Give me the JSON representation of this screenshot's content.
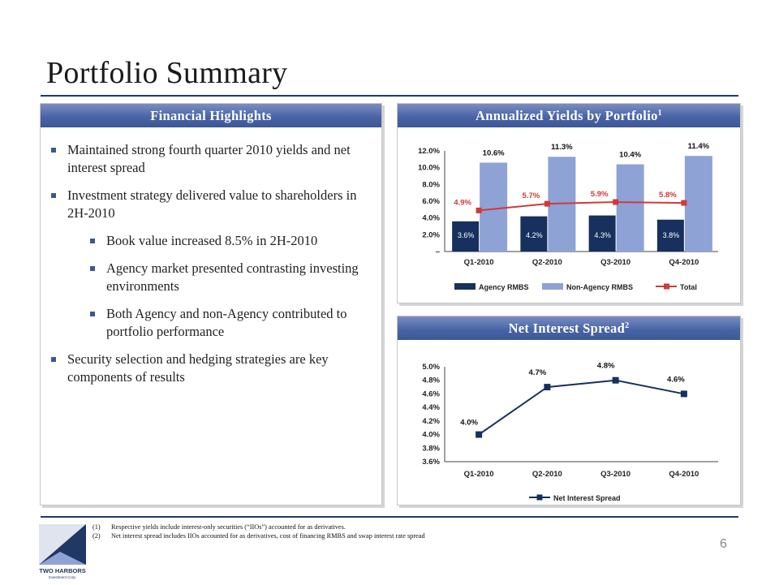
{
  "page": {
    "title": "Portfolio Summary",
    "page_number": "6"
  },
  "highlights": {
    "header": "Financial Highlights",
    "bullets": [
      "Maintained strong fourth quarter 2010 yields and net interest spread",
      "Investment strategy delivered value to shareholders in 2H-2010",
      "Book value increased 8.5% in 2H-2010",
      "Agency market presented contrasting investing environments",
      "Both Agency and non-Agency contributed to portfolio performance",
      "Security selection and hedging strategies are key components of  results"
    ]
  },
  "yields_panel": {
    "header": "Annualized Yields by Portfolio",
    "header_sup": "1"
  },
  "spread_panel": {
    "header": "Net Interest Spread",
    "header_sup": "2"
  },
  "chart_data": [
    {
      "type": "bar",
      "categories": [
        "Q1-2010",
        "Q2-2010",
        "Q3-2010",
        "Q4-2010"
      ],
      "series": [
        {
          "name": "Agency RMBS",
          "type": "bar",
          "color": "#17305e",
          "values": [
            3.6,
            4.2,
            4.3,
            3.8
          ],
          "labels": [
            "3.6%",
            "4.2%",
            "4.3%",
            "3.8%"
          ]
        },
        {
          "name": "Non-Agency RMBS",
          "type": "bar",
          "color": "#8ea2d6",
          "values": [
            10.6,
            11.3,
            10.4,
            11.4
          ],
          "labels": [
            "10.6%",
            "11.3%",
            "10.4%",
            "11.4%"
          ]
        },
        {
          "name": "Total",
          "type": "line",
          "color": "#d03a3a",
          "values": [
            4.9,
            5.7,
            5.9,
            5.8
          ],
          "labels": [
            "4.9%",
            "5.7%",
            "5.9%",
            "5.8%"
          ]
        }
      ],
      "yticks": [
        "12.0%",
        "10.0%",
        "8.0%",
        "6.0%",
        "4.0%",
        "2.0%",
        "–"
      ],
      "ytick_values": [
        12,
        10,
        8,
        6,
        4,
        2,
        0
      ],
      "ylim": [
        0,
        12
      ],
      "legend": "bottom",
      "grid": false
    },
    {
      "type": "line",
      "categories": [
        "Q1-2010",
        "Q2-2010",
        "Q3-2010",
        "Q4-2010"
      ],
      "series": [
        {
          "name": "Net Interest Spread",
          "color": "#17305e",
          "values": [
            4.0,
            4.7,
            4.8,
            4.6
          ],
          "labels": [
            "4.0%",
            "4.7%",
            "4.8%",
            "4.6%"
          ]
        }
      ],
      "yticks": [
        "5.0%",
        "4.8%",
        "4.6%",
        "4.4%",
        "4.2%",
        "4.0%",
        "3.8%",
        "3.6%"
      ],
      "ytick_values": [
        5.0,
        4.8,
        4.6,
        4.4,
        4.2,
        4.0,
        3.8,
        3.6
      ],
      "ylim": [
        3.6,
        5.0
      ],
      "legend": "bottom",
      "grid": false
    }
  ],
  "footnotes": [
    {
      "key": "(1)",
      "text": "Respective yields include interest-only securities (“IIOs”) accounted for as derivatives."
    },
    {
      "key": "(2)",
      "text": "Net interest spread includes IIOs accounted for as derivatives, cost of financing RMBS and swap interest rate spread"
    }
  ],
  "logo": {
    "text": "TWO HARBORS",
    "subtext": "Investment Corp.",
    "color": "#1f3864"
  }
}
